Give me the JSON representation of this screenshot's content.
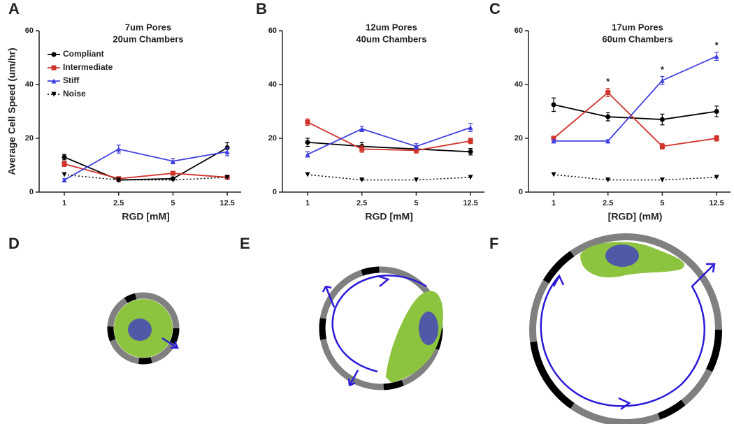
{
  "panel_labels": [
    "A",
    "B",
    "C",
    "D",
    "E",
    "F"
  ],
  "chart_data": [
    {
      "type": "line",
      "title": "7um Pores",
      "subtitle": "20um Chambers",
      "x_label": "RGD [mM]",
      "y_label": "Average Cell Speed (um/hr)",
      "categories": [
        "1",
        "2.5",
        "5",
        "12.5"
      ],
      "ylim": [
        0,
        60
      ],
      "yticks": [
        0,
        20,
        40,
        60
      ],
      "legend": true,
      "series": [
        {
          "name": "Compliant",
          "color": "#000000",
          "marker": "circle",
          "values": [
            13,
            4.5,
            5,
            16.5
          ],
          "errors": [
            1,
            0.5,
            0.5,
            2
          ]
        },
        {
          "name": "Intermediate",
          "color": "#d0342c",
          "marker": "square",
          "values": [
            10.5,
            5,
            7,
            5.5
          ],
          "errors": [
            1,
            0.5,
            0.5,
            0.5
          ]
        },
        {
          "name": "Stiff",
          "color": "#3f3fe0",
          "marker": "triangle",
          "values": [
            4.5,
            16,
            11.5,
            15
          ],
          "errors": [
            0.5,
            1.5,
            1,
            1.5
          ]
        },
        {
          "name": "Noise",
          "color": "#000000",
          "marker": "down-triangle",
          "dashed": true,
          "values": [
            6.5,
            4.5,
            4.5,
            5.5
          ]
        }
      ]
    },
    {
      "type": "line",
      "title": "12um Pores",
      "subtitle": "40um Chambers",
      "x_label": "RGD [mM]",
      "categories": [
        "1",
        "2.5",
        "5",
        "12.5"
      ],
      "ylim": [
        0,
        60
      ],
      "yticks": [
        0,
        20,
        40,
        60
      ],
      "series": [
        {
          "color": "#000000",
          "marker": "circle",
          "values": [
            18.5,
            17,
            16,
            15
          ],
          "errors": [
            1.5,
            1.5,
            1,
            1.2
          ]
        },
        {
          "color": "#d0342c",
          "marker": "square",
          "values": [
            26,
            16,
            15.5,
            19
          ],
          "errors": [
            1.2,
            1.2,
            1,
            1
          ]
        },
        {
          "color": "#3f3fe0",
          "marker": "triangle",
          "values": [
            14,
            23.5,
            17,
            24
          ],
          "errors": [
            1,
            1,
            1,
            1.5
          ]
        },
        {
          "color": "#000000",
          "marker": "down-triangle",
          "dashed": true,
          "values": [
            6.5,
            4.5,
            4.5,
            5.5
          ]
        }
      ]
    },
    {
      "type": "line",
      "title": "17um Pores",
      "subtitle": "60um Chambers",
      "x_label": "[RGD] (mM)",
      "categories": [
        "1",
        "2.5",
        "5",
        "12.5"
      ],
      "ylim": [
        0,
        60
      ],
      "yticks": [
        0,
        20,
        40,
        60
      ],
      "annotations": [
        {
          "text": "*",
          "x": "2.5"
        },
        {
          "text": "*",
          "x": "5"
        },
        {
          "text": "*",
          "x": "12.5"
        }
      ],
      "series": [
        {
          "color": "#000000",
          "marker": "circle",
          "values": [
            32.5,
            28,
            27,
            30
          ],
          "errors": [
            2.5,
            1.5,
            2,
            2
          ]
        },
        {
          "color": "#d0342c",
          "marker": "square",
          "values": [
            20,
            37,
            17,
            20
          ],
          "errors": [
            0.8,
            1.5,
            1,
            1
          ]
        },
        {
          "color": "#3f3fe0",
          "marker": "triangle",
          "values": [
            19,
            19,
            41.5,
            50.5
          ],
          "errors": [
            0.5,
            0.5,
            1.5,
            1.5
          ]
        },
        {
          "color": "#000000",
          "marker": "down-triangle",
          "dashed": true,
          "values": [
            6.5,
            4.5,
            4.5,
            5.5
          ]
        }
      ]
    }
  ]
}
